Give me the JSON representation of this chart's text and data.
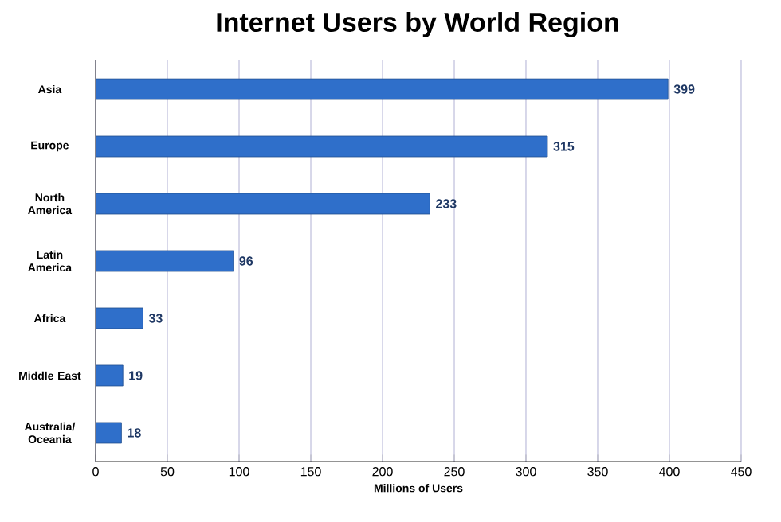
{
  "chart_data": {
    "type": "bar",
    "orientation": "horizontal",
    "title": "Internet Users by World Region",
    "xlabel": "Millions of Users",
    "categories": [
      "Asia",
      "Europe",
      "North America",
      "Latin America",
      "Africa",
      "Middle East",
      "Australia/ Oceania"
    ],
    "values": [
      399,
      315,
      233,
      96,
      33,
      19,
      18
    ],
    "color": "#2f6fca",
    "xlim": [
      0,
      450
    ],
    "xticks": [
      0,
      50,
      100,
      150,
      200,
      250,
      300,
      350,
      400,
      450
    ],
    "grid": "x",
    "data_labels": true
  }
}
